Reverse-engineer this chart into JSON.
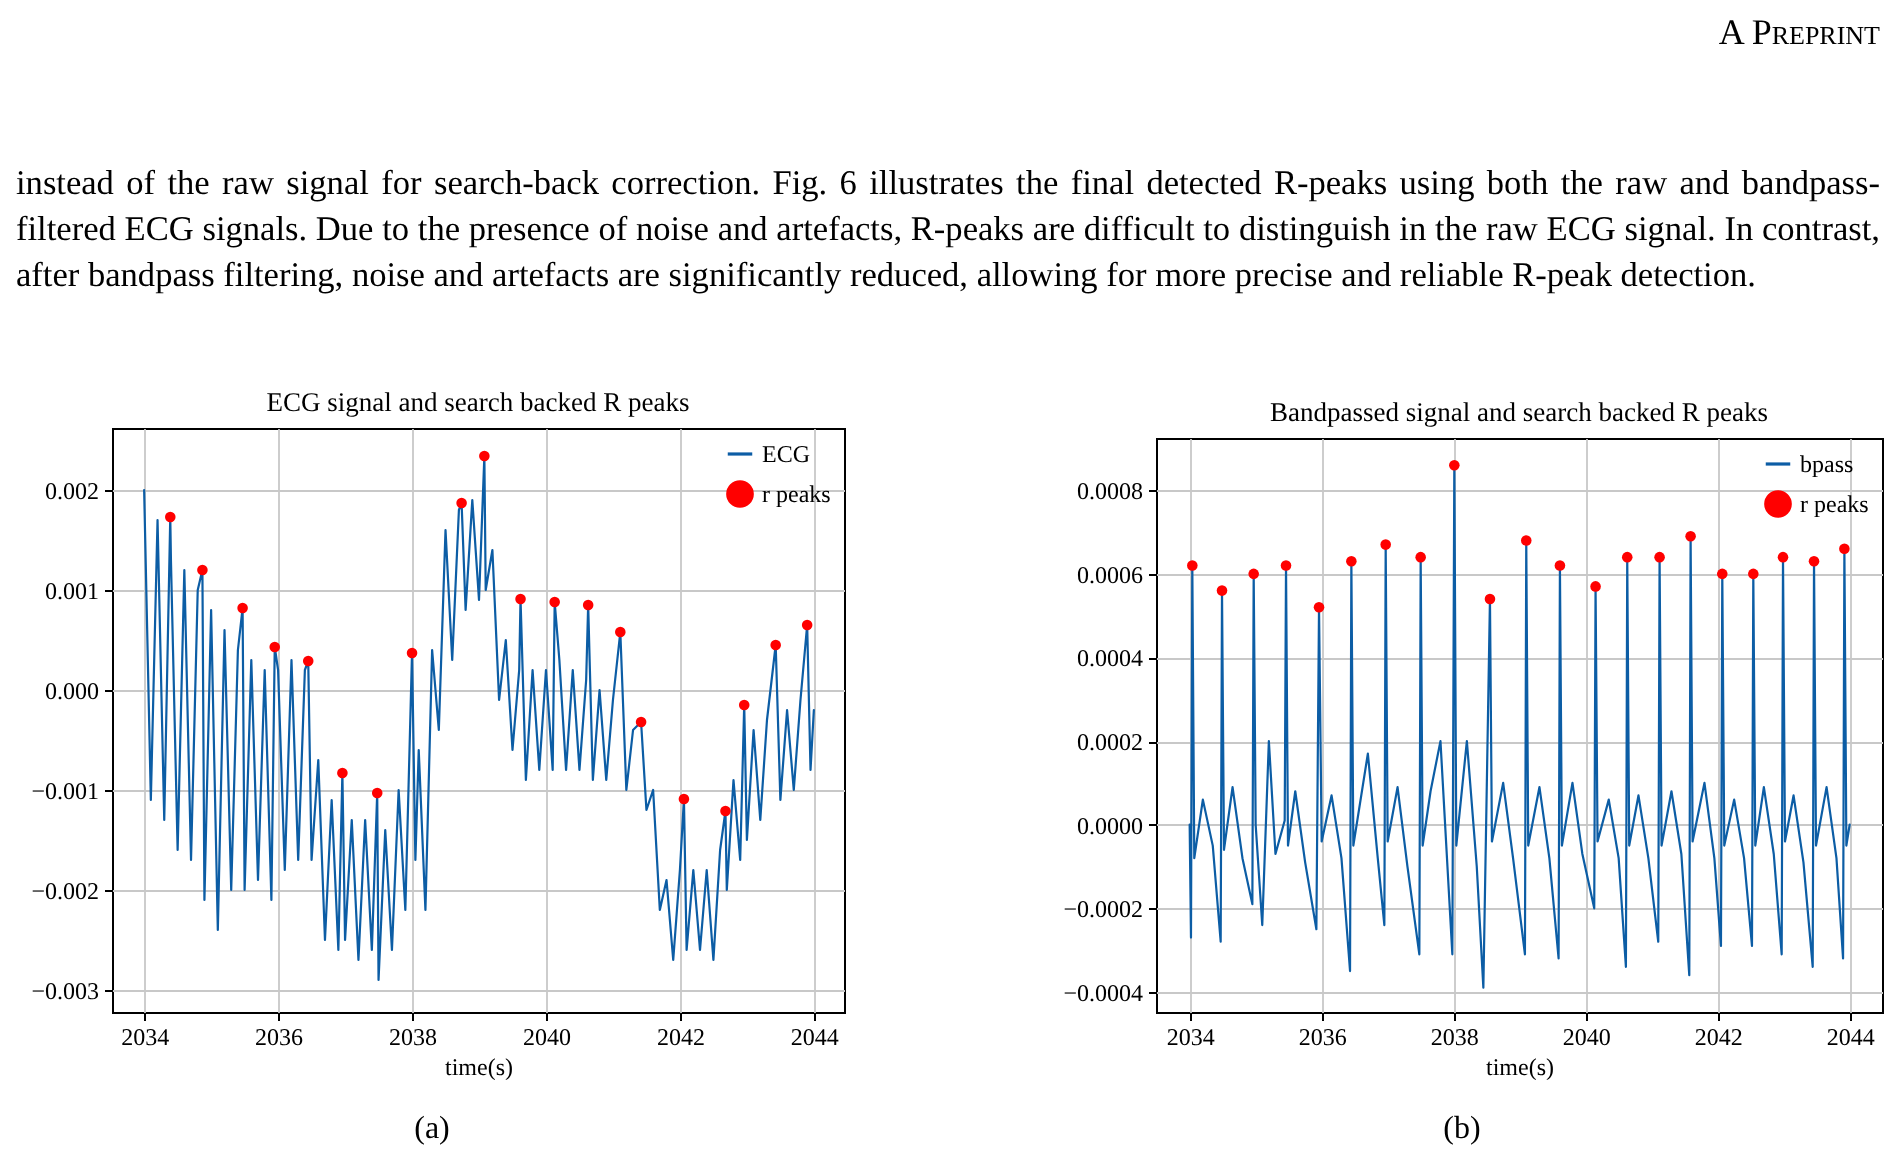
{
  "chart_data": [
    {
      "type": "other",
      "annotations": [
        "A Preprint",
        "instead of the raw signal for search-back correction. Fig. 6 illustrates the final detected R-peaks using both the raw and bandpass-filtered ECG signals. Due to the presence of noise and artefacts, R-peaks are difficult to distinguish in the raw ECG signal. In contrast, after bandpass filtering, noise and artefacts are significantly reduced, allowing for more precise and reliable R-peak detection."
      ]
    },
    {
      "type": "line",
      "title": "ECG signal and search backed R peaks",
      "xlabel": "time(s)",
      "annotations": [
        "(a)"
      ],
      "xlim": [
        2033.52,
        2044.45
      ],
      "ylim": [
        -0.00322,
        0.00262
      ],
      "xticks": [
        2034,
        2036,
        2038,
        2040,
        2042,
        2044
      ],
      "yticks": [
        {
          "value": -0.003,
          "label": "−0.003"
        },
        {
          "value": -0.002,
          "label": "−0.002"
        },
        {
          "value": -0.001,
          "label": "−0.001"
        },
        {
          "value": 0,
          "label": "0.000"
        },
        0.001,
        0.002
      ],
      "grid": true,
      "legend": "top right",
      "series": [
        {
          "name": "ECG",
          "type": "line",
          "color": "#0c5da5",
          "x": [
            2034.0,
            2034.1,
            2034.2,
            2034.3,
            2034.39,
            2034.4,
            2034.5,
            2034.6,
            2034.7,
            2034.8,
            2034.87,
            2034.9,
            2035.0,
            2035.1,
            2035.2,
            2035.3,
            2035.4,
            2035.47,
            2035.5,
            2035.6,
            2035.7,
            2035.8,
            2035.9,
            2035.95,
            2036.0,
            2036.1,
            2036.2,
            2036.3,
            2036.4,
            2036.45,
            2036.5,
            2036.6,
            2036.7,
            2036.8,
            2036.9,
            2036.96,
            2037.0,
            2037.1,
            2037.2,
            2037.3,
            2037.4,
            2037.48,
            2037.5,
            2037.6,
            2037.7,
            2037.8,
            2037.9,
            2038.0,
            2038.05,
            2038.1,
            2038.2,
            2038.3,
            2038.4,
            2038.5,
            2038.6,
            2038.7,
            2038.74,
            2038.8,
            2038.9,
            2039.0,
            2039.08,
            2039.1,
            2039.2,
            2039.3,
            2039.4,
            2039.5,
            2039.6,
            2039.62,
            2039.7,
            2039.8,
            2039.9,
            2040.0,
            2040.1,
            2040.13,
            2040.2,
            2040.3,
            2040.4,
            2040.5,
            2040.6,
            2040.63,
            2040.7,
            2040.8,
            2040.9,
            2041.0,
            2041.11,
            2041.2,
            2041.3,
            2041.42,
            2041.5,
            2041.6,
            2041.7,
            2041.8,
            2041.9,
            2042.0,
            2042.06,
            2042.1,
            2042.2,
            2042.3,
            2042.4,
            2042.5,
            2042.6,
            2042.68,
            2042.7,
            2042.8,
            2042.9,
            2042.96,
            2043.0,
            2043.1,
            2043.2,
            2043.3,
            2043.43,
            2043.5,
            2043.6,
            2043.7,
            2043.8,
            2043.9,
            2043.95,
            2044.0
          ],
          "values": [
            0.002,
            -0.0011,
            0.0017,
            -0.0013,
            0.00173,
            0.0013,
            -0.0016,
            0.0012,
            -0.0017,
            0.001,
            0.0012,
            -0.0021,
            0.0008,
            -0.0024,
            0.0006,
            -0.002,
            0.0004,
            0.00082,
            -0.002,
            0.0003,
            -0.0019,
            0.0002,
            -0.0021,
            0.00043,
            0.0002,
            -0.0018,
            0.0003,
            -0.0017,
            0.0002,
            0.00029,
            -0.0017,
            -0.0007,
            -0.0025,
            -0.0011,
            -0.0026,
            -0.00083,
            -0.0025,
            -0.0013,
            -0.0027,
            -0.0013,
            -0.0026,
            -0.00103,
            -0.0029,
            -0.0014,
            -0.0026,
            -0.001,
            -0.0022,
            0.00037,
            -0.0017,
            -0.0006,
            -0.0022,
            0.0004,
            -0.0004,
            0.0016,
            0.0003,
            0.0018,
            0.00187,
            0.0008,
            0.0019,
            0.0009,
            0.00234,
            0.001,
            0.0014,
            -0.0001,
            0.0005,
            -0.0006,
            0.0002,
            0.00091,
            -0.0009,
            0.0002,
            -0.0008,
            0.0002,
            -0.0008,
            0.00088,
            0.0003,
            -0.0008,
            0.0002,
            -0.0008,
            0.0001,
            0.00085,
            -0.0009,
            0.0,
            -0.0009,
            -0.0001,
            0.00058,
            -0.001,
            -0.0004,
            -0.00032,
            -0.0012,
            -0.001,
            -0.0022,
            -0.0019,
            -0.0027,
            -0.0018,
            -0.00109,
            -0.0026,
            -0.0018,
            -0.0026,
            -0.0018,
            -0.0027,
            -0.0016,
            -0.00121,
            -0.002,
            -0.0009,
            -0.0017,
            -0.00015,
            -0.0015,
            -0.0004,
            -0.0013,
            -0.0003,
            0.00045,
            -0.0011,
            -0.0002,
            -0.001,
            -0.0001,
            0.00065,
            -0.0008,
            -0.0002
          ]
        },
        {
          "name": "r peaks",
          "type": "scatter",
          "marker": "circle",
          "color": "#ff0000",
          "x": [
            2034.39,
            2034.87,
            2035.47,
            2035.95,
            2036.45,
            2036.96,
            2037.48,
            2038.0,
            2038.74,
            2039.08,
            2039.62,
            2040.13,
            2040.63,
            2041.11,
            2041.42,
            2042.06,
            2042.68,
            2042.96,
            2043.43,
            2043.9
          ],
          "values": [
            0.00173,
            0.0012,
            0.00082,
            0.00043,
            0.00029,
            -0.00083,
            -0.00103,
            0.00037,
            0.00187,
            0.00234,
            0.00091,
            0.00088,
            0.00085,
            0.00058,
            -0.00032,
            -0.00109,
            -0.00121,
            -0.00015,
            0.00045,
            0.00065
          ]
        }
      ]
    },
    {
      "type": "line",
      "title": "Bandpassed signal and search backed R peaks",
      "xlabel": "time(s)",
      "annotations": [
        "(b)"
      ],
      "xlim": [
        2033.49,
        2044.49
      ],
      "ylim": [
        -0.000448,
        0.000925
      ],
      "xticks": [
        2034,
        2036,
        2038,
        2040,
        2042,
        2044
      ],
      "yticks": [
        {
          "value": -0.0004,
          "label": "−0.0004"
        },
        {
          "value": -0.0002,
          "label": "−0.0002"
        },
        {
          "value": 0,
          "label": "0.0000"
        },
        0.0002,
        0.0004,
        0.0006,
        0.0008
      ],
      "grid": true,
      "legend": "top right",
      "series": [
        {
          "name": "bpass",
          "type": "line",
          "color": "#0c5da5",
          "x": [
            2034.0,
            2034.02,
            2034.04,
            2034.07,
            2034.2,
            2034.35,
            2034.47,
            2034.49,
            2034.52,
            2034.65,
            2034.8,
            2034.95,
            2034.97,
            2035.0,
            2035.1,
            2035.2,
            2035.3,
            2035.44,
            2035.46,
            2035.49,
            2035.6,
            2035.75,
            2035.92,
            2035.96,
            2036.0,
            2036.15,
            2036.3,
            2036.43,
            2036.45,
            2036.48,
            2036.7,
            2036.85,
            2036.95,
            2036.97,
            2037.0,
            2037.15,
            2037.3,
            2037.48,
            2037.5,
            2037.53,
            2037.65,
            2037.8,
            2037.98,
            2038.01,
            2038.04,
            2038.2,
            2038.35,
            2038.45,
            2038.55,
            2038.58,
            2038.75,
            2038.9,
            2039.08,
            2039.1,
            2039.13,
            2039.3,
            2039.45,
            2039.59,
            2039.61,
            2039.64,
            2039.8,
            2039.95,
            2040.13,
            2040.15,
            2040.18,
            2040.35,
            2040.5,
            2040.61,
            2040.63,
            2040.66,
            2040.8,
            2040.95,
            2041.1,
            2041.12,
            2041.15,
            2041.3,
            2041.45,
            2041.57,
            2041.59,
            2041.62,
            2041.8,
            2041.95,
            2042.05,
            2042.07,
            2042.1,
            2042.25,
            2042.4,
            2042.52,
            2042.54,
            2042.57,
            2042.7,
            2042.85,
            2042.97,
            2042.99,
            2043.02,
            2043.15,
            2043.3,
            2043.44,
            2043.46,
            2043.49,
            2043.65,
            2043.8,
            2043.9,
            2043.92,
            2043.95,
            2044.0
          ],
          "values": [
            0.0,
            -0.00027,
            0.00062,
            -8e-05,
            6e-05,
            -5e-05,
            -0.00028,
            0.00056,
            -6e-05,
            9e-05,
            -8e-05,
            -0.00019,
            0.0006,
            0.0,
            -0.00024,
            0.0002,
            -7e-05,
            1e-05,
            0.00062,
            -5e-05,
            8e-05,
            -9e-05,
            -0.00025,
            0.00052,
            -4e-05,
            7e-05,
            -8e-05,
            -0.00035,
            0.00063,
            -5e-05,
            0.00017,
            -8e-05,
            -0.00024,
            0.00067,
            -4e-05,
            9e-05,
            -0.0001,
            -0.00031,
            0.00064,
            -5e-05,
            8e-05,
            0.0002,
            -0.00031,
            0.00086,
            -5e-05,
            0.0002,
            -0.0001,
            -0.00039,
            0.00054,
            -4e-05,
            0.0001,
            -8e-05,
            -0.00031,
            0.00068,
            -5e-05,
            9e-05,
            -8e-05,
            -0.00032,
            0.00062,
            -5e-05,
            0.0001,
            -7e-05,
            -0.0002,
            0.00057,
            -4e-05,
            6e-05,
            -8e-05,
            -0.00034,
            0.00064,
            -5e-05,
            7e-05,
            -8e-05,
            -0.00028,
            0.00064,
            -5e-05,
            8e-05,
            -7e-05,
            -0.00036,
            0.00069,
            -4e-05,
            0.0001,
            -8e-05,
            -0.00029,
            0.0006,
            -5e-05,
            6e-05,
            -8e-05,
            -0.00029,
            0.0006,
            -5e-05,
            9e-05,
            -7e-05,
            -0.00031,
            0.00064,
            -4e-05,
            7e-05,
            -9e-05,
            -0.00034,
            0.00063,
            -5e-05,
            9e-05,
            -8e-05,
            -0.00032,
            0.00066,
            -5e-05,
            0.0
          ]
        },
        {
          "name": "r peaks",
          "type": "scatter",
          "marker": "circle",
          "color": "#ff0000",
          "x": [
            2034.04,
            2034.49,
            2034.97,
            2035.46,
            2035.96,
            2036.45,
            2036.97,
            2037.5,
            2038.01,
            2038.55,
            2039.1,
            2039.61,
            2040.15,
            2040.63,
            2041.12,
            2041.59,
            2042.07,
            2042.54,
            2042.99,
            2043.46,
            2043.92
          ],
          "values": [
            0.00062,
            0.00056,
            0.0006,
            0.00062,
            0.00052,
            0.00063,
            0.00067,
            0.00064,
            0.00086,
            0.00054,
            0.00068,
            0.00062,
            0.00057,
            0.00064,
            0.00064,
            0.00069,
            0.0006,
            0.0006,
            0.00064,
            0.00063,
            0.00066
          ]
        }
      ]
    }
  ]
}
